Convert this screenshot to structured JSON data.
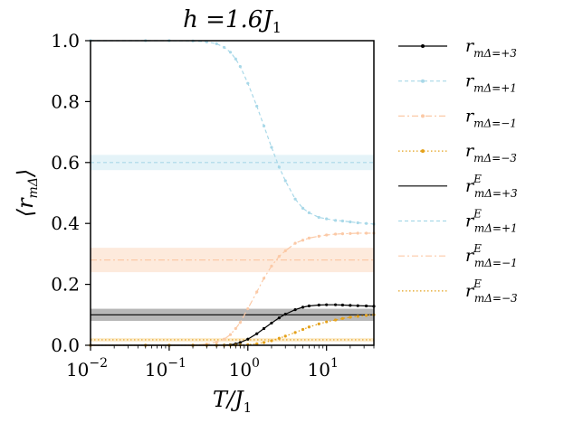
{
  "chart_data": {
    "type": "line",
    "title": "h =1.6J",
    "title_sub": "1",
    "xlabel": "T/J",
    "xlabel_sub": "1",
    "ylabel": "⟨r",
    "ylabel_sub": "mΔ",
    "ylabel_close": "⟩",
    "xscale": "log",
    "xlim": [
      0.01,
      40
    ],
    "ylim": [
      0.0,
      1.0
    ],
    "xticks": [
      {
        "value": 0.01,
        "base": "10",
        "exp": "−2"
      },
      {
        "value": 0.1,
        "base": "10",
        "exp": "−1"
      },
      {
        "value": 1,
        "base": "10",
        "exp": "0"
      },
      {
        "value": 10,
        "base": "10",
        "exp": "1"
      }
    ],
    "yticks": [
      "0.0",
      "0.2",
      "0.4",
      "0.6",
      "0.8",
      "1.0"
    ],
    "grid": false,
    "legend_position": "outside-right",
    "x": [
      0.01,
      0.05,
      0.1,
      0.2,
      0.3,
      0.4,
      0.5,
      0.6,
      0.7,
      0.8,
      1.0,
      1.3,
      1.6,
      2.0,
      2.5,
      3.0,
      4.0,
      5.0,
      6.0,
      8.0,
      10.0,
      13.0,
      16.0,
      20.0,
      25.0,
      32.0,
      40.0
    ],
    "series": [
      {
        "name": "r",
        "sub": "mΔ=+3",
        "color": "#000000",
        "style": "solid",
        "marker": true,
        "values": [
          0,
          0,
          0,
          0,
          0,
          0,
          0.0003,
          0.0015,
          0.0045,
          0.009,
          0.02,
          0.038,
          0.055,
          0.073,
          0.09,
          0.102,
          0.117,
          0.125,
          0.129,
          0.132,
          0.133,
          0.133,
          0.132,
          0.131,
          0.13,
          0.129,
          0.128
        ]
      },
      {
        "name": "r",
        "sub": "mΔ=+1",
        "color": "#a8d8e8",
        "style": "dashed",
        "marker": true,
        "values": [
          1,
          1,
          1,
          0.999,
          0.996,
          0.99,
          0.978,
          0.962,
          0.94,
          0.915,
          0.86,
          0.785,
          0.72,
          0.65,
          0.585,
          0.54,
          0.48,
          0.45,
          0.435,
          0.42,
          0.415,
          0.41,
          0.408,
          0.405,
          0.402,
          0.4,
          0.398
        ]
      },
      {
        "name": "r",
        "sub": "mΔ=−1",
        "color": "#fbc9a6",
        "style": "dashdot",
        "marker": true,
        "values": [
          0,
          0,
          0,
          0.001,
          0.004,
          0.01,
          0.02,
          0.035,
          0.055,
          0.075,
          0.12,
          0.175,
          0.22,
          0.26,
          0.292,
          0.31,
          0.335,
          0.345,
          0.352,
          0.358,
          0.362,
          0.365,
          0.366,
          0.367,
          0.368,
          0.368,
          0.368
        ]
      },
      {
        "name": "r",
        "sub": "mΔ=−3",
        "color": "#e4a11b",
        "style": "dotted",
        "marker": true,
        "values": [
          0,
          0,
          0,
          0,
          0,
          0,
          0,
          0,
          0.0003,
          0.0007,
          0.002,
          0.005,
          0.009,
          0.015,
          0.023,
          0.03,
          0.042,
          0.052,
          0.06,
          0.07,
          0.077,
          0.083,
          0.088,
          0.092,
          0.095,
          0.098,
          0.1
        ]
      },
      {
        "name": "r",
        "sup": "E",
        "sub": "mΔ=+3",
        "color": "#000000",
        "style": "solid",
        "marker": false,
        "constant": 0.1,
        "band": [
          0.08,
          0.12
        ],
        "band_color": "#aaaaaa"
      },
      {
        "name": "r",
        "sup": "E",
        "sub": "mΔ=+1",
        "color": "#a8d8e8",
        "style": "dashed",
        "marker": false,
        "constant": 0.6,
        "band": [
          0.575,
          0.625
        ],
        "band_color": "#dff1f7"
      },
      {
        "name": "r",
        "sup": "E",
        "sub": "mΔ=−1",
        "color": "#fbc9a6",
        "style": "dashdot",
        "marker": false,
        "constant": 0.28,
        "band": [
          0.24,
          0.32
        ],
        "band_color": "#fde6d6"
      },
      {
        "name": "r",
        "sup": "E",
        "sub": "mΔ=−3",
        "color": "#e4a11b",
        "style": "dotted",
        "marker": false,
        "constant": 0.018,
        "band": [
          0.012,
          0.024
        ],
        "band_color": "#fbe9c4"
      }
    ]
  }
}
